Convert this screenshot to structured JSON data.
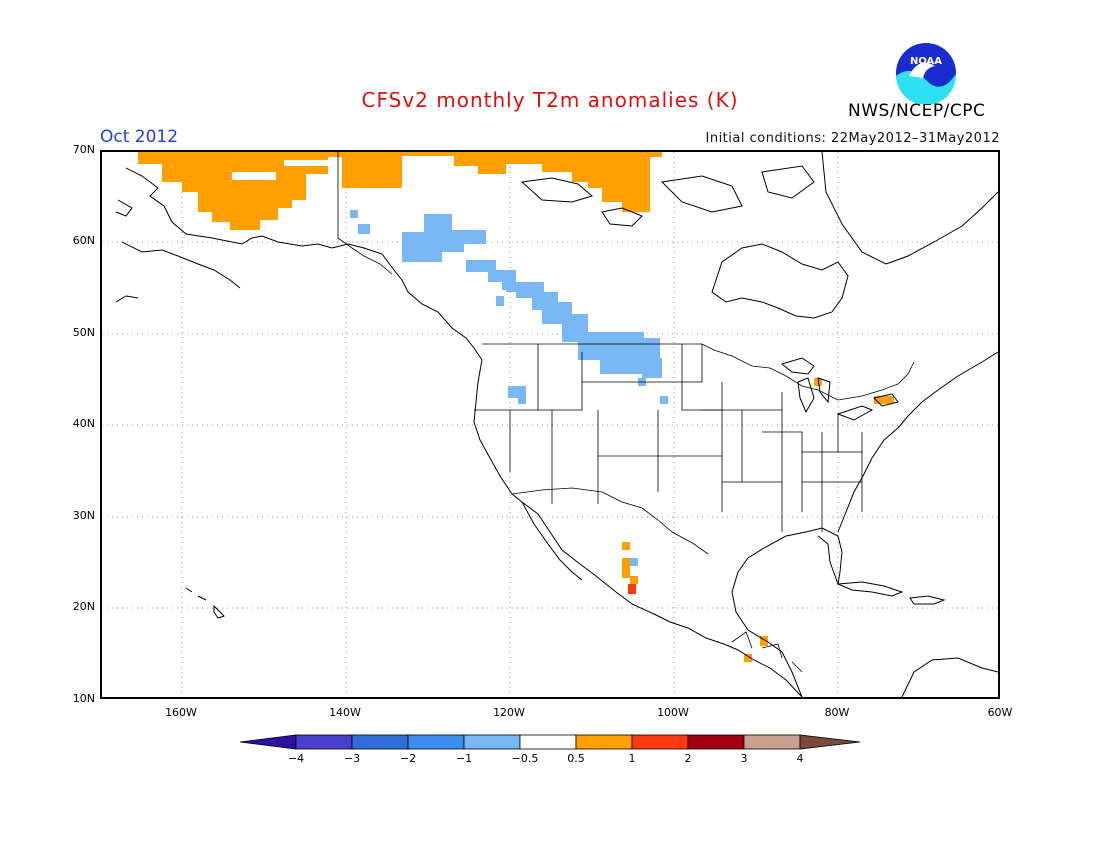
{
  "header": {
    "title": "CFSv2 monthly T2m anomalies (K)",
    "month": "Oct 2012",
    "initial_conditions": "Initial conditions: 22May2012–31May2012",
    "org": "NWS/NCEP/CPC",
    "logo_text": "NOAA"
  },
  "axes": {
    "lat_labels": [
      "70N",
      "60N",
      "50N",
      "40N",
      "30N",
      "20N",
      "10N"
    ],
    "lon_labels": [
      "160W",
      "140W",
      "120W",
      "100W",
      "80W",
      "60W"
    ],
    "lat_range": [
      10,
      70
    ],
    "lon_range": [
      -170,
      -60
    ]
  },
  "colorbar": {
    "labels": [
      "−4",
      "−3",
      "−2",
      "−1",
      "−0.5",
      "0.5",
      "1",
      "2",
      "3",
      "4"
    ],
    "colors": [
      "#3010a0",
      "#4a40d0",
      "#2f6ed8",
      "#3b8ef0",
      "#7ab8f5",
      "#ffffff",
      "#ffa000",
      "#ff3a10",
      "#a00010",
      "#c9a090",
      "#7a4a3a"
    ]
  },
  "anomaly_regions": [
    {
      "name": "alaska-warm",
      "category": "0.5 to 1",
      "color": "#ffa000"
    },
    {
      "name": "northern-canada-warm",
      "category": "0.5 to 1",
      "color": "#ffa000"
    },
    {
      "name": "western-canada-cool",
      "category": "-1 to -0.5",
      "color": "#7ab8f5"
    },
    {
      "name": "mexico-warm",
      "category": "0.5 to 2",
      "color": "#ffa000"
    },
    {
      "name": "great-lakes-warm",
      "category": "0.5 to 1",
      "color": "#ffa000"
    },
    {
      "name": "central-america-warm",
      "category": "0.5 to 1",
      "color": "#ffa000"
    }
  ]
}
